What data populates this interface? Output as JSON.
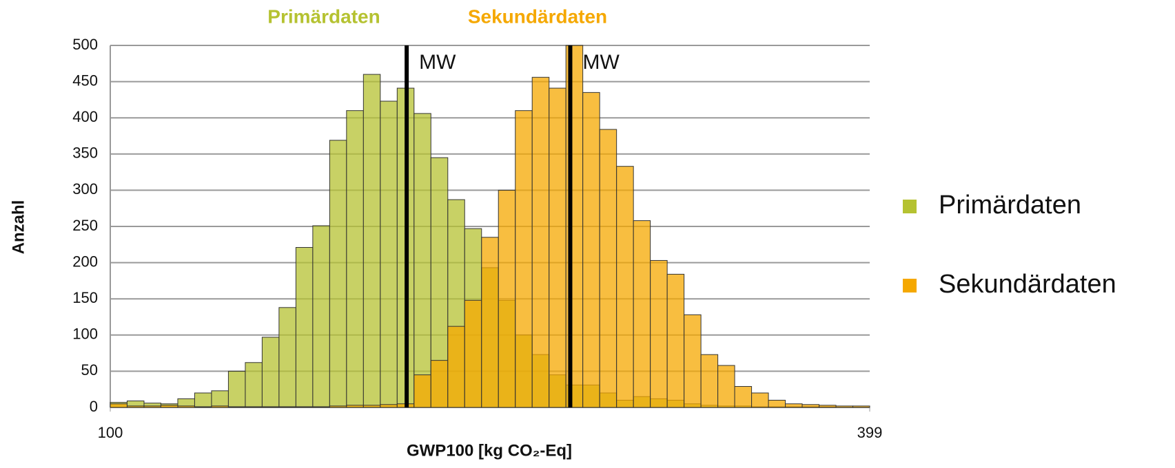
{
  "chart_data": {
    "type": "histogram",
    "xlabel": "GWP100 [kg CO₂-Eq]",
    "ylabel": "Anzahl",
    "bins": [
      100,
      106.64,
      113.29,
      119.93,
      126.58,
      133.22,
      139.87,
      146.51,
      153.16,
      159.8,
      166.44,
      173.09,
      179.73,
      186.38,
      193.02,
      199.67,
      206.31,
      212.96,
      219.6,
      226.24,
      232.89,
      239.53,
      246.18,
      252.82,
      259.47,
      266.11,
      272.76,
      279.4,
      286.04,
      292.69,
      299.33,
      305.98,
      312.62,
      319.27,
      325.91,
      332.56,
      339.2,
      345.84,
      352.49,
      359.13,
      365.78,
      372.42,
      379.07,
      385.71,
      392.36,
      399
    ],
    "series": [
      {
        "name": "Primärdaten",
        "color": "#b5c231",
        "values": [
          7,
          9,
          6,
          5,
          12,
          20,
          23,
          50,
          62,
          97,
          138,
          221,
          251,
          369,
          410,
          460,
          423,
          441,
          406,
          345,
          287,
          247,
          193,
          148,
          100,
          73,
          45,
          31,
          31,
          20,
          10,
          15,
          12,
          10,
          5,
          3,
          2,
          2,
          1,
          1,
          1,
          1,
          1,
          0,
          0
        ]
      },
      {
        "name": "Sekundärdaten",
        "color": "#f5a800",
        "values": [
          5,
          2,
          2,
          3,
          2,
          1,
          2,
          1,
          1,
          1,
          1,
          1,
          1,
          2,
          3,
          3,
          4,
          5,
          45,
          65,
          112,
          148,
          235,
          300,
          410,
          456,
          441,
          500,
          435,
          384,
          333,
          258,
          203,
          184,
          128,
          73,
          58,
          29,
          20,
          10,
          5,
          4,
          3,
          2,
          2
        ]
      }
    ],
    "mean_lines": [
      {
        "label": "MW",
        "value": 216.7
      },
      {
        "label": "MW",
        "value": 281.1
      }
    ],
    "xlim": [
      100,
      399
    ],
    "xticks": [
      100,
      399
    ],
    "ylim": [
      0,
      500
    ],
    "yticks": [
      0,
      50,
      100,
      150,
      200,
      250,
      300,
      350,
      400,
      450,
      500
    ],
    "grid": true,
    "legend": "right"
  }
}
